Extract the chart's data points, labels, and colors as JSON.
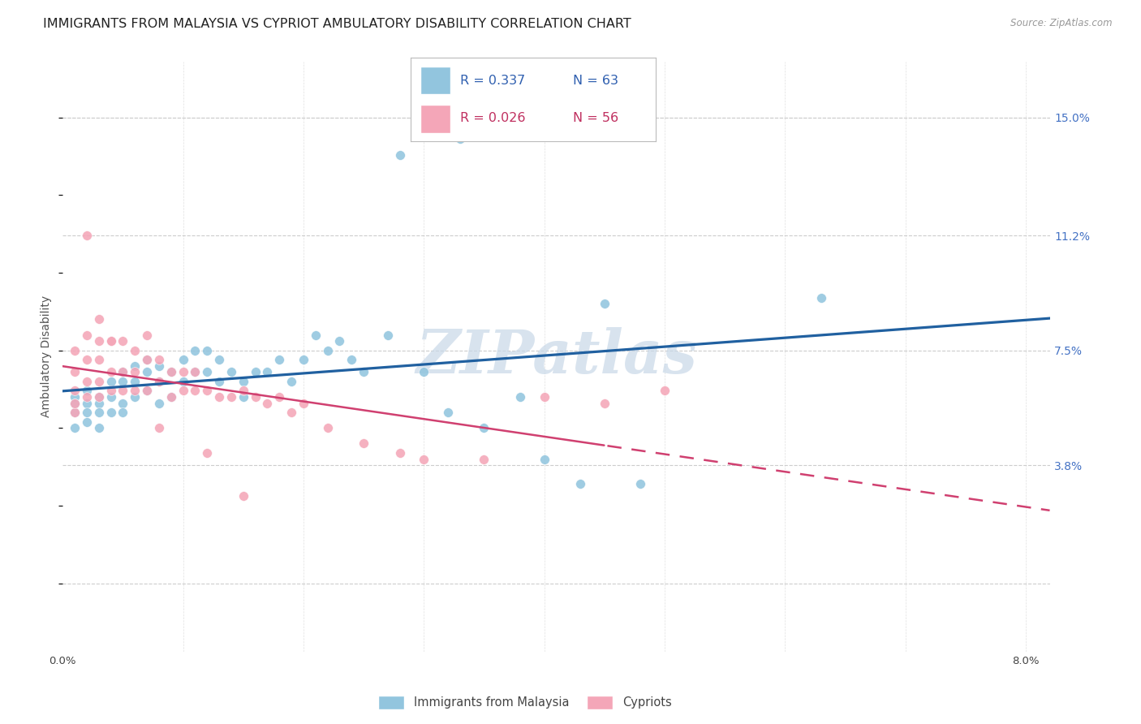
{
  "title": "IMMIGRANTS FROM MALAYSIA VS CYPRIOT AMBULATORY DISABILITY CORRELATION CHART",
  "source": "Source: ZipAtlas.com",
  "ylabel": "Ambulatory Disability",
  "xlim": [
    0.0,
    0.082
  ],
  "ylim": [
    -0.022,
    0.168
  ],
  "xtick_positions": [
    0.0,
    0.01,
    0.02,
    0.03,
    0.04,
    0.05,
    0.06,
    0.07,
    0.08
  ],
  "xticklabels": [
    "0.0%",
    "",
    "",
    "",
    "",
    "",
    "",
    "",
    "8.0%"
  ],
  "ytick_right_vals": [
    0.038,
    0.075,
    0.112,
    0.15
  ],
  "ytick_right_labels": [
    "3.8%",
    "7.5%",
    "11.2%",
    "15.0%"
  ],
  "legend_blue_r": "R = 0.337",
  "legend_blue_n": "N = 63",
  "legend_pink_r": "R = 0.026",
  "legend_pink_n": "N = 56",
  "blue_color": "#92c5de",
  "pink_color": "#f4a6b8",
  "trend_blue_color": "#2060a0",
  "trend_pink_color": "#d04070",
  "watermark_color": "#c8d8e8",
  "title_fontsize": 11.5,
  "blue_scatter_x": [
    0.001,
    0.001,
    0.001,
    0.001,
    0.002,
    0.002,
    0.002,
    0.002,
    0.003,
    0.003,
    0.003,
    0.003,
    0.004,
    0.004,
    0.004,
    0.005,
    0.005,
    0.005,
    0.005,
    0.006,
    0.006,
    0.006,
    0.007,
    0.007,
    0.007,
    0.008,
    0.008,
    0.008,
    0.009,
    0.009,
    0.01,
    0.01,
    0.011,
    0.011,
    0.012,
    0.012,
    0.013,
    0.013,
    0.014,
    0.015,
    0.015,
    0.016,
    0.017,
    0.018,
    0.019,
    0.02,
    0.021,
    0.022,
    0.023,
    0.024,
    0.025,
    0.027,
    0.03,
    0.032,
    0.035,
    0.038,
    0.04,
    0.043,
    0.048,
    0.063,
    0.028,
    0.033,
    0.045
  ],
  "blue_scatter_y": [
    0.06,
    0.055,
    0.058,
    0.05,
    0.062,
    0.058,
    0.055,
    0.052,
    0.06,
    0.058,
    0.055,
    0.05,
    0.065,
    0.06,
    0.055,
    0.068,
    0.065,
    0.058,
    0.055,
    0.07,
    0.065,
    0.06,
    0.072,
    0.068,
    0.062,
    0.07,
    0.065,
    0.058,
    0.068,
    0.06,
    0.072,
    0.065,
    0.075,
    0.068,
    0.075,
    0.068,
    0.072,
    0.065,
    0.068,
    0.065,
    0.06,
    0.068,
    0.068,
    0.072,
    0.065,
    0.072,
    0.08,
    0.075,
    0.078,
    0.072,
    0.068,
    0.08,
    0.068,
    0.055,
    0.05,
    0.06,
    0.04,
    0.032,
    0.032,
    0.092,
    0.138,
    0.143,
    0.09
  ],
  "pink_scatter_x": [
    0.001,
    0.001,
    0.001,
    0.001,
    0.001,
    0.002,
    0.002,
    0.002,
    0.002,
    0.003,
    0.003,
    0.003,
    0.003,
    0.004,
    0.004,
    0.004,
    0.005,
    0.005,
    0.005,
    0.006,
    0.006,
    0.006,
    0.007,
    0.007,
    0.007,
    0.008,
    0.008,
    0.009,
    0.009,
    0.01,
    0.01,
    0.011,
    0.011,
    0.012,
    0.013,
    0.014,
    0.015,
    0.016,
    0.017,
    0.018,
    0.019,
    0.02,
    0.022,
    0.025,
    0.028,
    0.03,
    0.035,
    0.04,
    0.045,
    0.05,
    0.002,
    0.003,
    0.004,
    0.008,
    0.012,
    0.015
  ],
  "pink_scatter_y": [
    0.062,
    0.068,
    0.055,
    0.075,
    0.058,
    0.072,
    0.08,
    0.065,
    0.06,
    0.078,
    0.072,
    0.065,
    0.06,
    0.078,
    0.068,
    0.062,
    0.078,
    0.068,
    0.062,
    0.075,
    0.068,
    0.062,
    0.08,
    0.072,
    0.062,
    0.072,
    0.065,
    0.068,
    0.06,
    0.068,
    0.062,
    0.068,
    0.062,
    0.062,
    0.06,
    0.06,
    0.062,
    0.06,
    0.058,
    0.06,
    0.055,
    0.058,
    0.05,
    0.045,
    0.042,
    0.04,
    0.04,
    0.06,
    0.058,
    0.062,
    0.112,
    0.085,
    0.078,
    0.05,
    0.042,
    0.028
  ]
}
